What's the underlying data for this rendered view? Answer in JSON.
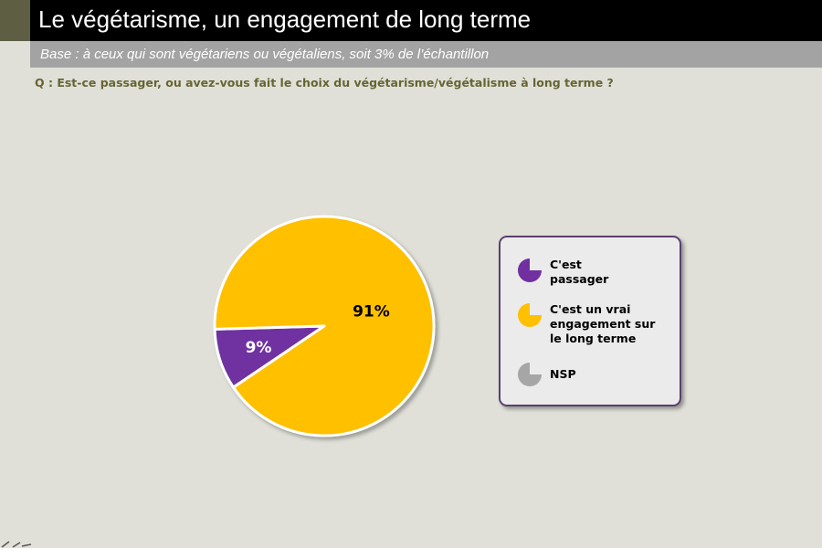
{
  "header": {
    "title": "Le végétarisme, un engagement de long terme",
    "base": "Base : à ceux qui sont végétariens ou végétaliens, soit 3% de l’échantillon",
    "question": "Q : Est-ce passager, ou avez-vous fait le choix du végétarisme/végétalisme à long terme ?"
  },
  "chart_data": {
    "type": "pie",
    "slices": [
      {
        "label": "C'est passager",
        "value": 9,
        "display": "9%",
        "color": "#7030a0"
      },
      {
        "label": "C'est un vrai engagement sur le long terme",
        "value": 91,
        "display": "91%",
        "color": "#ffc000"
      },
      {
        "label": "NSP",
        "value": 0,
        "display": "",
        "color": "#a6a6a6"
      }
    ],
    "legend_position": "right"
  },
  "legend": {
    "items": [
      {
        "label_lines": [
          "C'est",
          "passager"
        ],
        "color": "#7030a0",
        "icon": "pie-icon"
      },
      {
        "label_lines": [
          "C'est un vrai",
          "engagement sur",
          "le long terme"
        ],
        "color": "#ffc000",
        "icon": "pie-icon"
      },
      {
        "label_lines": [
          "NSP"
        ],
        "color": "#a6a6a6",
        "icon": "pie-icon"
      }
    ]
  }
}
